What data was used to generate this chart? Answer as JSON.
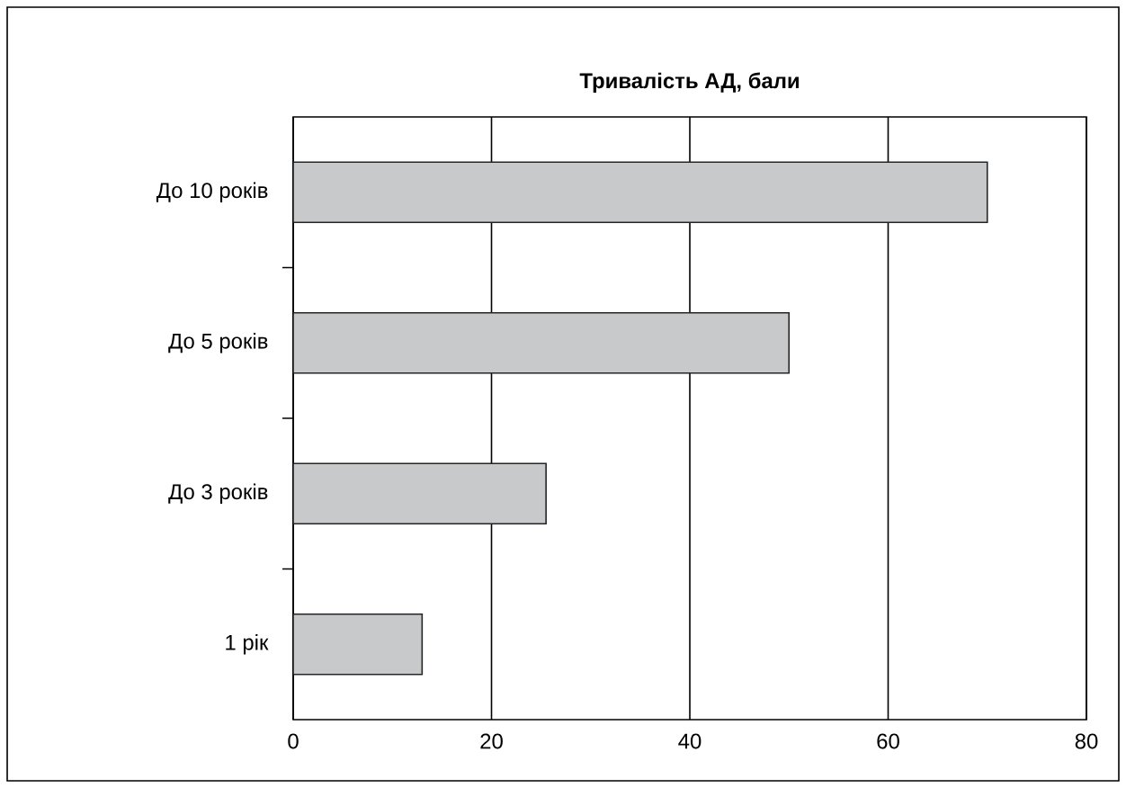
{
  "chart_data": {
    "type": "bar",
    "orientation": "horizontal",
    "title": "**Тривалість АД, бали**",
    "categories": [
      "До 10 років",
      "До 5 років",
      "До 3 років",
      "1 рік"
    ],
    "values": [
      70,
      50,
      25.5,
      13
    ],
    "color": "#c8c9cb",
    "xlim": [
      0,
      80
    ],
    "xticks": [
      0,
      20,
      40,
      60,
      80
    ],
    "grid": "x"
  }
}
